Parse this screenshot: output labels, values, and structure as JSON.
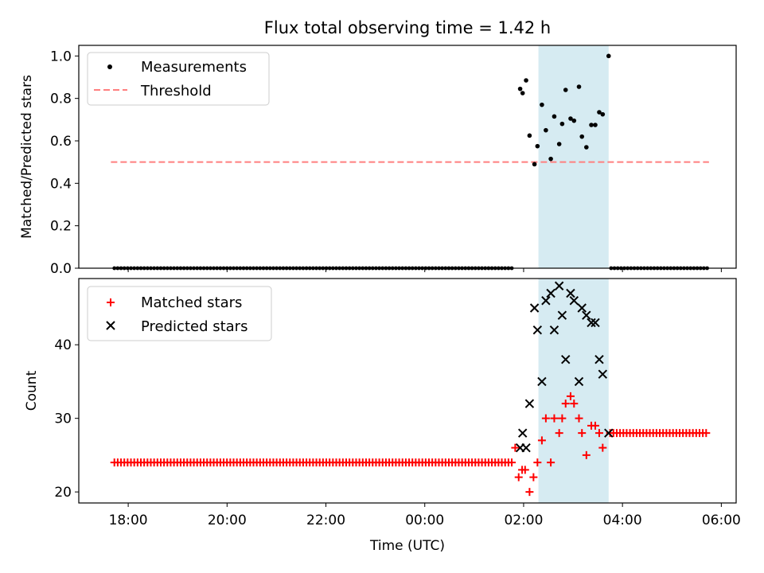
{
  "title": "Flux total observing time = 1.42 h",
  "colors": {
    "measurement": "#000000",
    "threshold": "#ff7f7f",
    "matched": "#ff0000",
    "predicted": "#000000",
    "span": "#add8e6"
  },
  "chart_data": [
    {
      "type": "scatter",
      "ylabel": "Matched/Predicted stars",
      "xlabel": "",
      "ylim": [
        0,
        1.05
      ],
      "yticks": [
        0.0,
        0.2,
        0.4,
        0.6,
        0.8,
        1.0
      ],
      "ytick_labels": [
        "0.0",
        "0.2",
        "0.4",
        "0.6",
        "0.8",
        "1.0"
      ],
      "highlight_span_hours": [
        26.3,
        27.72
      ],
      "threshold": {
        "value": 0.5,
        "x_range_hours": [
          17.65,
          29.75
        ]
      },
      "legend": {
        "position": "upper-left",
        "entries": [
          "Measurements",
          "Threshold"
        ]
      },
      "zero_series": {
        "x_start_hours": 17.72,
        "x_end_hours": 29.75,
        "step_hours": 0.067,
        "gap_hours": [
          25.8,
          27.75
        ],
        "value": 0
      },
      "series": [
        {
          "name": "Measurements",
          "x_hours": [
            25.93,
            25.98,
            26.05,
            26.12,
            26.22,
            26.28,
            26.37,
            26.45,
            26.55,
            26.62,
            26.72,
            26.78,
            26.85,
            26.95,
            27.02,
            27.12,
            27.18,
            27.27,
            27.37,
            27.45,
            27.53,
            27.6,
            27.72
          ],
          "values": [
            0.845,
            0.825,
            0.885,
            0.625,
            0.49,
            0.575,
            0.77,
            0.65,
            0.515,
            0.715,
            0.585,
            0.68,
            0.84,
            0.705,
            0.695,
            0.855,
            0.62,
            0.57,
            0.675,
            0.675,
            0.735,
            0.725,
            1.0
          ]
        }
      ]
    },
    {
      "type": "scatter",
      "ylabel": "Count",
      "xlabel": "Time (UTC)",
      "xlim_hours": [
        17.0,
        30.3
      ],
      "xticks_hours": [
        18,
        20,
        22,
        24,
        26,
        28,
        30
      ],
      "xtick_labels": [
        "18:00",
        "20:00",
        "22:00",
        "00:00",
        "02:00",
        "04:00",
        "06:00"
      ],
      "ylim": [
        18.5,
        49
      ],
      "yticks": [
        20,
        30,
        40
      ],
      "ytick_labels": [
        "20",
        "30",
        "40"
      ],
      "highlight_span_hours": [
        26.3,
        27.72
      ],
      "legend": {
        "position": "upper-left",
        "entries": [
          "Matched stars",
          "Predicted stars"
        ]
      },
      "constant_runs": [
        {
          "series": "Matched stars",
          "x_start_hours": 17.72,
          "x_end_hours": 25.78,
          "step_hours": 0.067,
          "value": 24
        },
        {
          "series": "Matched stars",
          "x_start_hours": 27.75,
          "x_end_hours": 29.75,
          "step_hours": 0.067,
          "value": 28
        }
      ],
      "series": [
        {
          "name": "Matched stars",
          "x_hours": [
            25.83,
            25.9,
            25.97,
            26.03,
            26.12,
            26.2,
            26.28,
            26.37,
            26.45,
            26.55,
            26.62,
            26.72,
            26.78,
            26.85,
            26.95,
            27.02,
            27.12,
            27.18,
            27.27,
            27.37,
            27.45,
            27.53,
            27.6
          ],
          "values": [
            26,
            22,
            23,
            23,
            20,
            22,
            24,
            27,
            30,
            24,
            30,
            28,
            30,
            32,
            33,
            32,
            30,
            28,
            25,
            29,
            29,
            28,
            26
          ]
        },
        {
          "name": "Predicted stars",
          "x_hours": [
            25.93,
            25.98,
            26.05,
            26.12,
            26.22,
            26.28,
            26.37,
            26.45,
            26.55,
            26.62,
            26.72,
            26.78,
            26.85,
            26.95,
            27.02,
            27.12,
            27.18,
            27.27,
            27.37,
            27.45,
            27.53,
            27.6,
            27.72
          ],
          "values": [
            26,
            28,
            26,
            32,
            45,
            42,
            35,
            46,
            47,
            42,
            48,
            44,
            38,
            47,
            46,
            35,
            45,
            44,
            43,
            43,
            38,
            36,
            28
          ]
        }
      ]
    }
  ]
}
